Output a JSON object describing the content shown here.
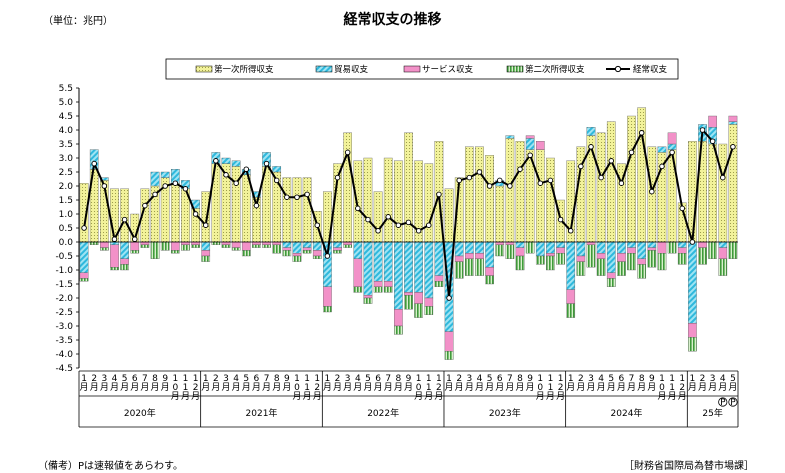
{
  "header": {
    "unit_label": "（単位：兆円）",
    "title": "経常収支の推移"
  },
  "footer": {
    "note": "（備考）Pは速報値をあらわす。",
    "source": "［財務省国際局為替市場課］"
  },
  "colors": {
    "primary_income": "#f2f29a",
    "trade": "#35c3e4",
    "services": "#f291c8",
    "secondary_income": "#8bcd70",
    "current_account_line": "#000000"
  },
  "chart_data": {
    "type": "bar",
    "stacked": true,
    "title": "経常収支の推移",
    "ylabel": "（単位：兆円）",
    "ylim": [
      -4.5,
      5.5
    ],
    "yticks": [
      "5.5",
      "5.0",
      "4.5",
      "4.0",
      "3.5",
      "3.0",
      "2.5",
      "2.0",
      "1.5",
      "1.0",
      "0.5",
      "0.0",
      "-0.5",
      "-1.0",
      "-1.5",
      "-2.0",
      "-2.5",
      "-3.0",
      "-3.5",
      "-4.0",
      "-4.5"
    ],
    "grid": false,
    "legend_position": "top",
    "month_labels": [
      "1",
      "2",
      "3",
      "4",
      "5",
      "6",
      "7",
      "8",
      "9",
      "10",
      "11",
      "12",
      "1",
      "2",
      "3",
      "4",
      "5",
      "6",
      "7",
      "8",
      "9",
      "10",
      "11",
      "12",
      "1",
      "2",
      "3",
      "4",
      "5",
      "6",
      "7",
      "8",
      "9",
      "10",
      "11",
      "12",
      "1",
      "2",
      "3",
      "4",
      "5",
      "6",
      "7",
      "8",
      "9",
      "10",
      "11",
      "12",
      "1",
      "2",
      "3",
      "4",
      "5",
      "6",
      "7",
      "8",
      "9",
      "10",
      "11",
      "12",
      "1",
      "2",
      "3",
      "4",
      "5"
    ],
    "month_suffix": "月",
    "prelim_marks": [
      {
        "index": 63,
        "label": "P"
      },
      {
        "index": 64,
        "label": "P"
      }
    ],
    "years": [
      {
        "label": "2020年",
        "start": 0,
        "count": 12
      },
      {
        "label": "2021年",
        "start": 12,
        "count": 12
      },
      {
        "label": "2022年",
        "start": 24,
        "count": 12
      },
      {
        "label": "2023年",
        "start": 36,
        "count": 12
      },
      {
        "label": "2024年",
        "start": 48,
        "count": 12
      },
      {
        "label": "25年",
        "start": 60,
        "count": 5
      }
    ],
    "series": [
      {
        "name": "第一次所得収支",
        "kind": "bar",
        "color": "#f2f29a",
        "values": [
          2.1,
          2.6,
          2.2,
          1.9,
          1.9,
          1.0,
          1.9,
          2.0,
          2.3,
          2.1,
          1.9,
          1.2,
          1.8,
          2.8,
          2.8,
          2.7,
          2.4,
          1.6,
          2.7,
          2.5,
          2.3,
          2.3,
          2.3,
          1.1,
          1.8,
          2.8,
          3.9,
          2.9,
          3.0,
          1.8,
          3.0,
          2.9,
          3.9,
          2.9,
          2.8,
          3.6,
          1.9,
          2.3,
          3.4,
          3.4,
          3.1,
          2.0,
          3.7,
          3.6,
          3.3,
          3.3,
          3.0,
          1.5,
          2.9,
          3.4,
          3.8,
          3.9,
          4.3,
          2.8,
          4.5,
          4.8,
          3.4,
          3.2,
          3.3,
          1.4,
          3.6,
          3.6,
          3.5,
          3.5,
          4.2
        ]
      },
      {
        "name": "貿易収支",
        "kind": "bar",
        "color": "#35c3e4",
        "values": [
          -1.1,
          0.7,
          0.1,
          -0.1,
          -0.6,
          0.0,
          0.0,
          0.5,
          0.2,
          0.5,
          0.3,
          0.3,
          -0.3,
          0.4,
          0.2,
          0.2,
          0.2,
          0.2,
          0.5,
          0.2,
          -0.2,
          -0.4,
          -0.2,
          -0.3,
          -1.6,
          -0.2,
          0.0,
          -0.6,
          -1.9,
          -1.4,
          -1.4,
          -2.4,
          -1.8,
          -1.8,
          -2.0,
          -1.2,
          -3.2,
          -0.5,
          -0.4,
          -0.4,
          -0.9,
          0.2,
          0.1,
          -0.2,
          0.4,
          -0.5,
          -0.4,
          -0.2,
          -1.7,
          -0.5,
          0.3,
          -0.4,
          -1.1,
          -0.4,
          -0.2,
          -0.6,
          -0.2,
          0.2,
          0.2,
          -0.2,
          -2.9,
          0.6,
          0.6,
          -0.2,
          0.1
        ]
      },
      {
        "name": "サービス収支",
        "kind": "bar",
        "color": "#f291c8",
        "values": [
          -0.2,
          0.0,
          -0.2,
          -0.8,
          -0.2,
          -0.3,
          -0.1,
          0.0,
          0.0,
          -0.3,
          -0.1,
          -0.1,
          -0.2,
          0.0,
          -0.1,
          -0.2,
          -0.3,
          -0.1,
          -0.1,
          -0.1,
          -0.1,
          -0.1,
          -0.1,
          -0.2,
          -0.7,
          -0.1,
          -0.1,
          -1.0,
          -0.1,
          -0.2,
          -0.2,
          -0.6,
          -0.1,
          -0.4,
          -0.3,
          -0.2,
          -0.7,
          -0.2,
          -0.2,
          -0.2,
          -0.3,
          -0.1,
          -0.1,
          -0.3,
          0.1,
          0.3,
          -0.1,
          -0.2,
          -0.5,
          -0.2,
          -0.1,
          -0.2,
          -0.2,
          -0.3,
          -0.2,
          -0.2,
          -0.1,
          -0.4,
          0.4,
          -0.2,
          -0.5,
          -0.2,
          0.4,
          -0.4,
          0.2
        ]
      },
      {
        "name": "第二次所得収支",
        "kind": "bar",
        "color": "#8bcd70",
        "values": [
          -0.1,
          -0.1,
          -0.1,
          -0.1,
          -0.2,
          -0.1,
          -0.1,
          -0.6,
          -0.3,
          -0.1,
          -0.2,
          -0.1,
          -0.2,
          -0.1,
          -0.1,
          -0.1,
          -0.2,
          -0.1,
          -0.1,
          -0.3,
          -0.2,
          -0.2,
          -0.1,
          -0.1,
          -0.2,
          -0.1,
          -0.1,
          -0.2,
          -0.2,
          -0.2,
          -0.2,
          -0.3,
          -0.5,
          -0.5,
          -0.3,
          -0.2,
          -0.3,
          -0.6,
          -0.6,
          -0.6,
          -0.3,
          -0.4,
          -0.5,
          -0.5,
          -0.4,
          -0.3,
          -0.5,
          -0.4,
          -0.5,
          -0.5,
          -0.8,
          -0.6,
          -0.3,
          -0.5,
          -0.6,
          -0.5,
          -0.6,
          -0.6,
          -0.4,
          -0.4,
          -0.5,
          -0.6,
          -0.6,
          -0.6,
          -0.6
        ]
      },
      {
        "name": "経常収支",
        "kind": "line",
        "color": "#000000",
        "values": [
          0.5,
          2.8,
          2.0,
          0.1,
          0.8,
          0.1,
          1.3,
          1.7,
          2.0,
          2.1,
          1.9,
          1.0,
          0.6,
          2.9,
          2.4,
          2.1,
          2.6,
          1.3,
          2.8,
          2.2,
          1.6,
          1.6,
          1.7,
          0.6,
          -0.5,
          2.3,
          3.2,
          1.2,
          0.8,
          0.4,
          0.9,
          0.6,
          0.7,
          0.4,
          0.6,
          1.7,
          -2.0,
          2.2,
          2.3,
          2.5,
          2.0,
          2.2,
          2.0,
          2.6,
          3.1,
          2.1,
          2.2,
          0.8,
          0.4,
          2.7,
          3.4,
          2.3,
          2.9,
          2.1,
          3.2,
          3.9,
          1.8,
          2.7,
          3.2,
          1.2,
          0.0,
          4.0,
          3.6,
          2.3,
          3.4
        ]
      }
    ]
  }
}
